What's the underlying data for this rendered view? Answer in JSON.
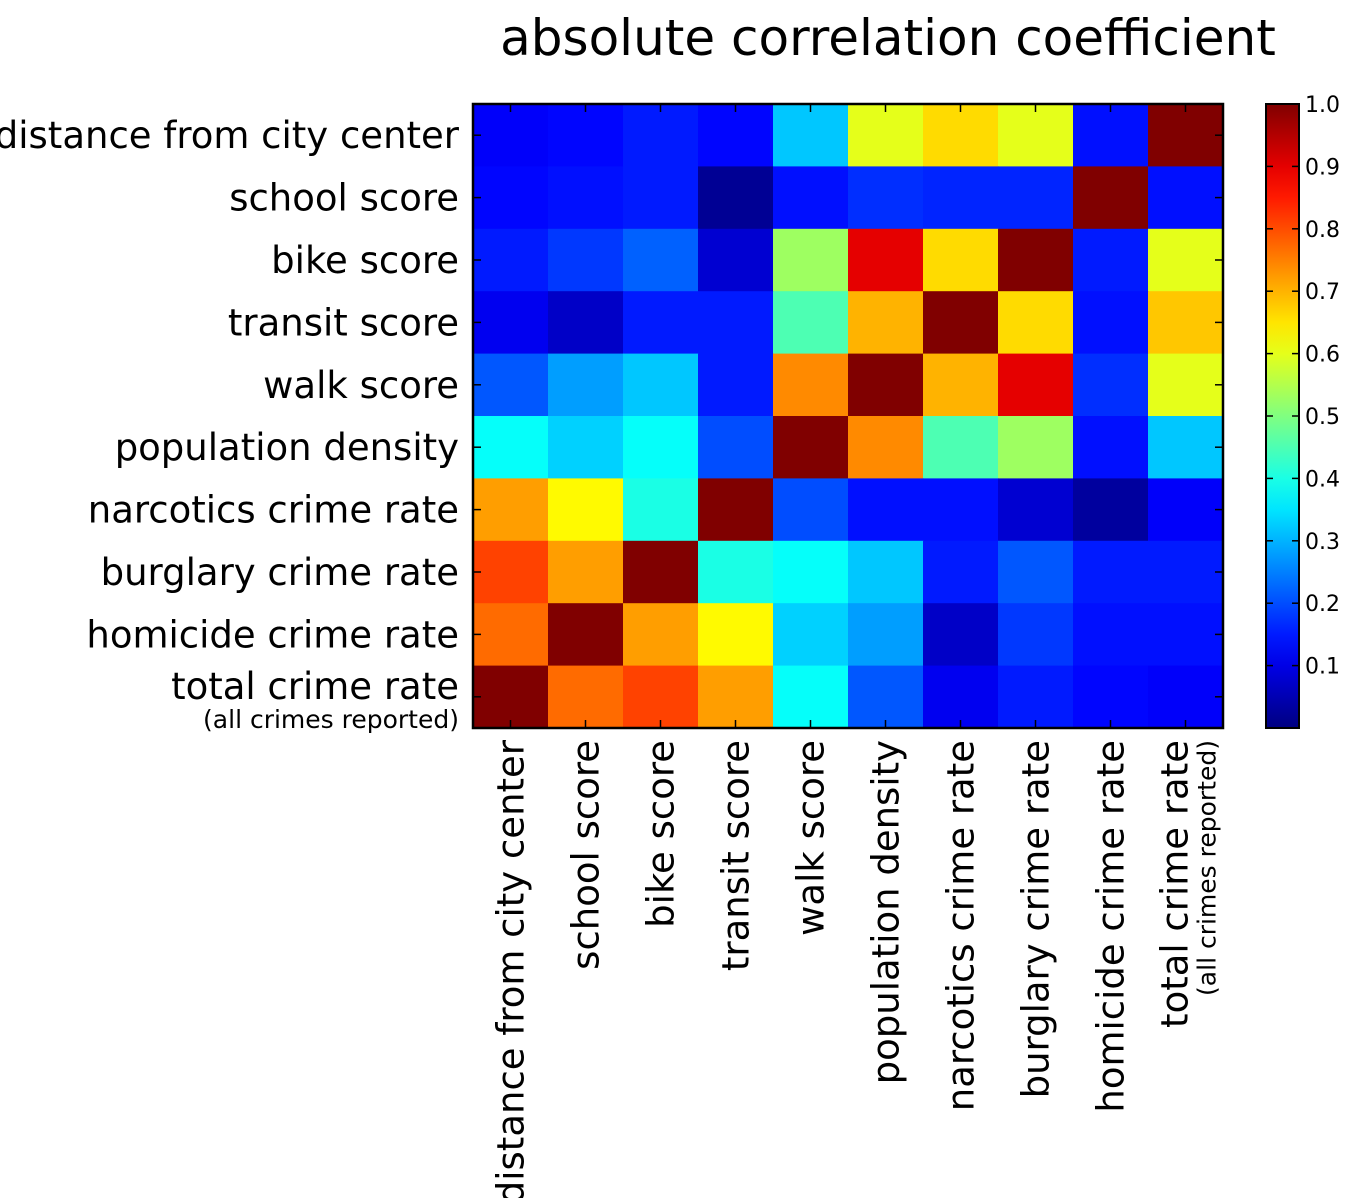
{
  "chart_data": {
    "type": "heatmap",
    "title": "absolute correlation coefficient",
    "row_labels": [
      {
        "text": "distance from city center",
        "sub": ""
      },
      {
        "text": "school score",
        "sub": ""
      },
      {
        "text": "bike score",
        "sub": ""
      },
      {
        "text": "transit score",
        "sub": ""
      },
      {
        "text": "walk score",
        "sub": ""
      },
      {
        "text": "population density",
        "sub": ""
      },
      {
        "text": "narcotics crime rate",
        "sub": ""
      },
      {
        "text": "burglary crime rate",
        "sub": ""
      },
      {
        "text": "homicide crime rate",
        "sub": ""
      },
      {
        "text": "total crime rate",
        "sub": "(all crimes reported)"
      }
    ],
    "col_labels": [
      {
        "text": "distance from city center",
        "sub": ""
      },
      {
        "text": "school score",
        "sub": ""
      },
      {
        "text": "bike score",
        "sub": ""
      },
      {
        "text": "transit score",
        "sub": ""
      },
      {
        "text": "walk score",
        "sub": ""
      },
      {
        "text": "population density",
        "sub": ""
      },
      {
        "text": "narcotics crime rate",
        "sub": ""
      },
      {
        "text": "burglary crime rate",
        "sub": ""
      },
      {
        "text": "homicide crime rate",
        "sub": ""
      },
      {
        "text": "total crime rate",
        "sub": "(all crimes reported)"
      }
    ],
    "values": [
      [
        0.12,
        0.13,
        0.15,
        0.13,
        0.32,
        0.6,
        0.66,
        0.6,
        0.14,
        1.0
      ],
      [
        0.13,
        0.14,
        0.15,
        0.02,
        0.14,
        0.17,
        0.16,
        0.16,
        1.0,
        0.14
      ],
      [
        0.15,
        0.18,
        0.22,
        0.08,
        0.53,
        0.9,
        0.66,
        1.0,
        0.15,
        0.6
      ],
      [
        0.11,
        0.07,
        0.15,
        0.15,
        0.45,
        0.7,
        1.0,
        0.66,
        0.14,
        0.68
      ],
      [
        0.21,
        0.28,
        0.32,
        0.15,
        0.74,
        1.0,
        0.7,
        0.9,
        0.17,
        0.6
      ],
      [
        0.38,
        0.33,
        0.38,
        0.2,
        1.0,
        0.74,
        0.45,
        0.53,
        0.14,
        0.32
      ],
      [
        0.72,
        0.63,
        0.4,
        1.0,
        0.2,
        0.14,
        0.14,
        0.08,
        0.03,
        0.12
      ],
      [
        0.81,
        0.72,
        1.0,
        0.4,
        0.38,
        0.32,
        0.15,
        0.21,
        0.15,
        0.15
      ],
      [
        0.77,
        1.0,
        0.72,
        0.63,
        0.33,
        0.28,
        0.07,
        0.18,
        0.14,
        0.14
      ],
      [
        1.0,
        0.77,
        0.81,
        0.72,
        0.38,
        0.21,
        0.11,
        0.15,
        0.13,
        0.12
      ]
    ],
    "colorbar": {
      "colormap": "jet",
      "vmin": 0.0,
      "vmax": 1.0,
      "ticks": [
        0.1,
        0.2,
        0.3,
        0.4,
        0.5,
        0.6,
        0.7,
        0.8,
        0.9,
        1.0
      ],
      "tick_labels": [
        "0.1",
        "0.2",
        "0.3",
        "0.4",
        "0.5",
        "0.6",
        "0.7",
        "0.8",
        "0.9",
        "1.0"
      ]
    }
  }
}
